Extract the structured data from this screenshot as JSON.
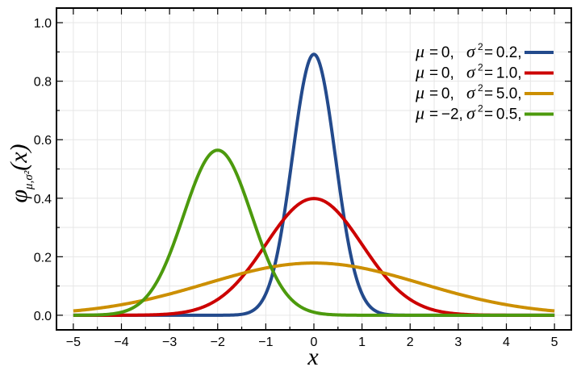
{
  "chart_data": {
    "type": "line",
    "title": "",
    "xlabel": "x",
    "ylabel": {
      "main": "φ",
      "subscript": "μ,σ²",
      "argument": "(x)"
    },
    "xlim": [
      -5.35,
      5.35
    ],
    "ylim": [
      -0.05,
      1.05
    ],
    "xticks": [
      -5,
      -4,
      -3,
      -2,
      -1,
      0,
      1,
      2,
      3,
      4,
      5
    ],
    "xtick_labels": [
      "−5",
      "−4",
      "−3",
      "−2",
      "−1",
      "0",
      "1",
      "2",
      "3",
      "4",
      "5"
    ],
    "yticks": [
      0.0,
      0.2,
      0.4,
      0.6,
      0.8,
      1.0
    ],
    "ytick_labels": [
      "0.0",
      "0.2",
      "0.4",
      "0.6",
      "0.8",
      "1.0"
    ],
    "grid": true,
    "legend_position": "top-right",
    "x_range": [
      -5,
      5
    ],
    "series": [
      {
        "mu_label": "μ",
        "mu_value": "0,",
        "sigma_label": "σ",
        "sigma_value": "0.2,",
        "mu": 0,
        "sigma2": 0.2,
        "color": "#234a8c"
      },
      {
        "mu_label": "μ",
        "mu_value": "0,",
        "sigma_label": "σ",
        "sigma_value": "1.0,",
        "mu": 0,
        "sigma2": 1.0,
        "color": "#cc0000"
      },
      {
        "mu_label": "μ",
        "mu_value": "0,",
        "sigma_label": "σ",
        "sigma_value": "5.0,",
        "mu": 0,
        "sigma2": 5.0,
        "color": "#cc8f00"
      },
      {
        "mu_label": "μ",
        "mu_value": "−2,",
        "sigma_label": "σ",
        "sigma_value": "0.5,",
        "mu": -2,
        "sigma2": 0.5,
        "color": "#4c9a0d"
      }
    ]
  }
}
